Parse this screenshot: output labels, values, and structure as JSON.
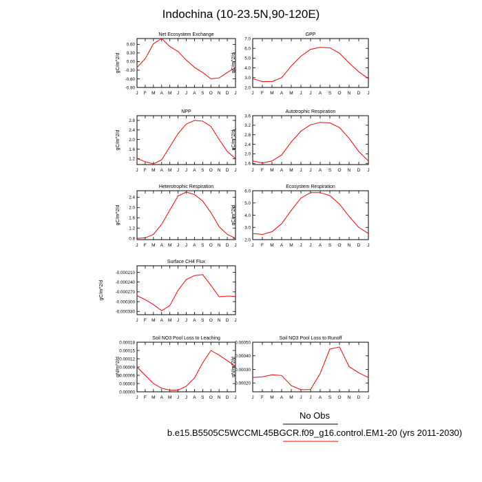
{
  "title": "Indochina (10-23.5N,90-120E)",
  "legend": {
    "obs_label": "No Obs",
    "model_label": "b.e15.B5505C5WCCML45BGCR.f09_g16.control.EM1-20 (yrs 2011-2030)",
    "colors": {
      "obs": "#000000",
      "model": "#ff0000"
    }
  },
  "months": [
    "J",
    "F",
    "M",
    "A",
    "M",
    "J",
    "J",
    "A",
    "S",
    "O",
    "N",
    "D",
    "J"
  ],
  "chart_data": [
    {
      "type": "line",
      "title": "Net Ecosystem Exchange",
      "ylabel": "gC/m^2/d",
      "ylim": [
        -0.9,
        0.8
      ],
      "yticks": [
        -0.9,
        -0.6,
        -0.3,
        0.0,
        0.3,
        0.6
      ],
      "ytick_labels": [
        "-0.90",
        "-0.60",
        "-0.30",
        "0.00",
        "0.30",
        "0.60"
      ],
      "series": [
        {
          "color": "#ff0000",
          "values": [
            -0.2,
            0.1,
            0.62,
            0.8,
            0.52,
            0.35,
            0.05,
            -0.2,
            -0.38,
            -0.6,
            -0.57,
            -0.38,
            -0.2
          ]
        }
      ]
    },
    {
      "type": "line",
      "title": "GPP",
      "ylabel": "gC/m^2/d",
      "ylim": [
        2.0,
        7.0
      ],
      "yticks": [
        2.0,
        3.0,
        4.0,
        5.0,
        6.0,
        7.0
      ],
      "ytick_labels": [
        "2.0",
        "3.0",
        "4.0",
        "5.0",
        "6.0",
        "7.0"
      ],
      "series": [
        {
          "color": "#ff0000",
          "values": [
            2.9,
            2.6,
            2.6,
            3.0,
            4.2,
            5.2,
            5.9,
            6.1,
            6.05,
            5.5,
            4.5,
            3.6,
            2.9
          ]
        }
      ]
    },
    {
      "type": "line",
      "title": "NPP",
      "ylabel": "gC/m^2/d",
      "ylim": [
        0.95,
        3.0
      ],
      "yticks": [
        1.2,
        1.6,
        2.0,
        2.4,
        2.8
      ],
      "ytick_labels": [
        "1.2",
        "1.6",
        "2.0",
        "2.4",
        "2.8"
      ],
      "series": [
        {
          "color": "#ff0000",
          "values": [
            1.2,
            1.07,
            0.98,
            1.15,
            1.7,
            2.25,
            2.65,
            2.8,
            2.77,
            2.55,
            2.0,
            1.5,
            1.2
          ]
        }
      ]
    },
    {
      "type": "line",
      "title": "Autotrophic Respiration",
      "ylabel": "gC/m^2/d",
      "ylim": [
        1.55,
        3.6
      ],
      "yticks": [
        1.6,
        2.0,
        2.4,
        2.8,
        3.2,
        3.6
      ],
      "ytick_labels": [
        "1.6",
        "2.0",
        "2.4",
        "2.8",
        "3.2",
        "3.6"
      ],
      "series": [
        {
          "color": "#ff0000",
          "values": [
            1.7,
            1.62,
            1.7,
            1.95,
            2.5,
            2.95,
            3.22,
            3.32,
            3.3,
            3.1,
            2.65,
            2.1,
            1.7
          ]
        }
      ]
    },
    {
      "type": "line",
      "title": "Heterotrophic Respiration",
      "ylabel": "gC/m^2/d",
      "ylim": [
        0.75,
        2.65
      ],
      "yticks": [
        0.8,
        1.2,
        1.6,
        2.0,
        2.4
      ],
      "ytick_labels": [
        "0.8",
        "1.2",
        "1.6",
        "2.0",
        "2.4"
      ],
      "series": [
        {
          "color": "#ff0000",
          "values": [
            0.8,
            0.82,
            0.95,
            1.35,
            1.9,
            2.45,
            2.6,
            2.5,
            2.25,
            1.8,
            1.25,
            0.95,
            0.8
          ]
        }
      ]
    },
    {
      "type": "line",
      "title": "Ecosystem Respiration",
      "ylabel": "gC/m^2/d",
      "ylim": [
        2.0,
        6.0
      ],
      "yticks": [
        2.0,
        3.0,
        4.0,
        5.0,
        6.0
      ],
      "ytick_labels": [
        "2.0",
        "3.0",
        "4.0",
        "5.0",
        "6.0"
      ],
      "series": [
        {
          "color": "#ff0000",
          "values": [
            2.5,
            2.42,
            2.65,
            3.3,
            4.4,
            5.4,
            5.85,
            5.85,
            5.6,
            4.9,
            3.9,
            3.0,
            2.5
          ]
        }
      ]
    },
    {
      "type": "line",
      "title": "Surface CH4 Flux",
      "ylabel": "gC/m^2/d",
      "ylim": [
        -0.00034,
        -0.00019
      ],
      "yticks": [
        -0.00033,
        -0.0003,
        -0.00027,
        -0.00024,
        -0.00021
      ],
      "ytick_labels": [
        "-0.000330",
        "-0.000300",
        "-0.000270",
        "-0.000240",
        "-0.000210"
      ],
      "series": [
        {
          "color": "#ff0000",
          "values": [
            -0.000282,
            -0.000294,
            -0.000309,
            -0.000328,
            -0.000312,
            -0.000265,
            -0.000232,
            -0.00022,
            -0.000217,
            -0.00025,
            -0.000285,
            -0.000283,
            -0.000284
          ]
        }
      ]
    },
    {
      "type": "line",
      "title": "Soil NO3 Pool Loss to Leaching",
      "ylabel": "gN/m^2/d",
      "ylim": [
        0.0,
        0.00018
      ],
      "yticks": [
        0.0,
        3e-05,
        6e-05,
        9e-05,
        0.00012,
        0.00015,
        0.00018
      ],
      "ytick_labels": [
        "0.00000",
        "0.00003",
        "0.00006",
        "0.00009",
        "0.00012",
        "0.00015",
        "0.00018"
      ],
      "series": [
        {
          "color": "#ff0000",
          "values": [
            9e-05,
            6e-05,
            3e-05,
            1.3e-05,
            6e-06,
            6e-06,
            2e-05,
            5e-05,
            0.000105,
            0.00015,
            0.000133,
            0.000113,
            9.3e-05
          ]
        }
      ]
    },
    {
      "type": "line",
      "title": "Soil NO3 Pool Loss to Runoff",
      "ylabel": "gN/m^2/d",
      "ylim": [
        0.000135,
        0.0005
      ],
      "yticks": [
        0.0002,
        0.0003,
        0.0004,
        0.0005
      ],
      "ytick_labels": [
        "0.00020",
        "0.00030",
        "0.00040",
        "0.00050"
      ],
      "series": [
        {
          "color": "#ff0000",
          "values": [
            0.00024,
            0.000245,
            0.00026,
            0.000255,
            0.00018,
            0.00015,
            0.000152,
            0.00027,
            0.00045,
            0.000465,
            0.00032,
            0.000275,
            0.00024
          ]
        }
      ]
    }
  ]
}
